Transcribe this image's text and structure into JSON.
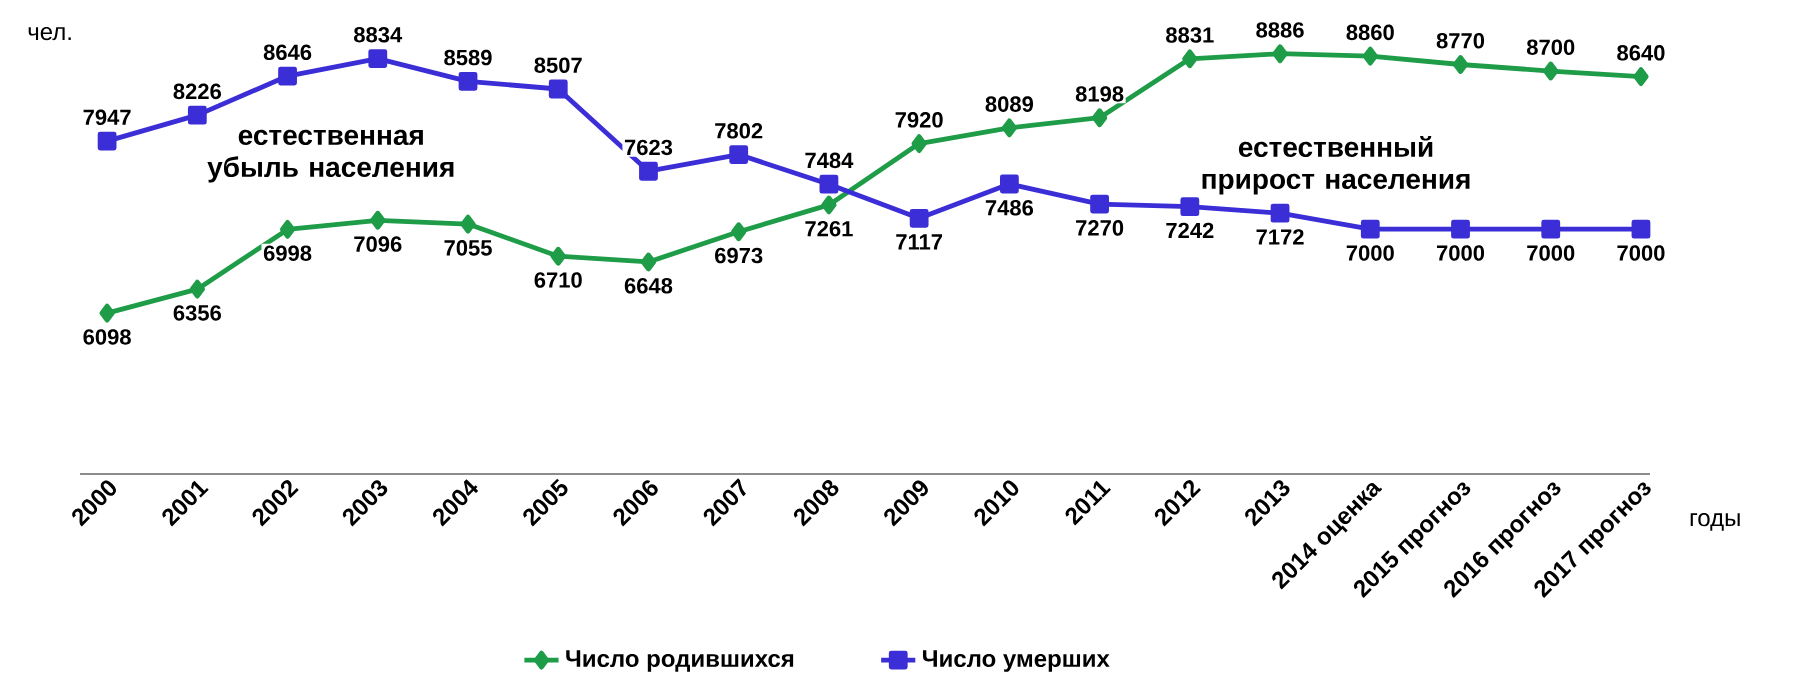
{
  "chart_data": {
    "type": "line",
    "xlabel": "годы",
    "ylabel": "чел.",
    "categories": [
      "2000",
      "2001",
      "2002",
      "2003",
      "2004",
      "2005",
      "2006",
      "2007",
      "2008",
      "2009",
      "2010",
      "2011",
      "2012",
      "2013",
      "2014 оценка",
      "2015 прогноз",
      "2016 прогноз",
      "2017 прогноз"
    ],
    "tick_labels": "x",
    "data_labels": true,
    "legend": "bottom",
    "line_style": "solid",
    "series": [
      {
        "name": "Число родившихся",
        "color": "#1e9c48",
        "marker": "diamond",
        "values": [
          6098,
          6356,
          6998,
          7096,
          7055,
          6710,
          6648,
          6973,
          7261,
          7920,
          8089,
          8198,
          8831,
          8886,
          8860,
          8770,
          8700,
          8640
        ]
      },
      {
        "name": "Число умерших",
        "color": "#3b2ed6",
        "marker": "square",
        "values": [
          7947,
          8226,
          8646,
          8834,
          8589,
          8507,
          7623,
          7802,
          7484,
          7117,
          7486,
          7270,
          7242,
          7172,
          7000,
          7000,
          7000,
          7000
        ]
      }
    ],
    "annotations": [
      "естественная убыль населения",
      "естественный прирост населения"
    ]
  }
}
